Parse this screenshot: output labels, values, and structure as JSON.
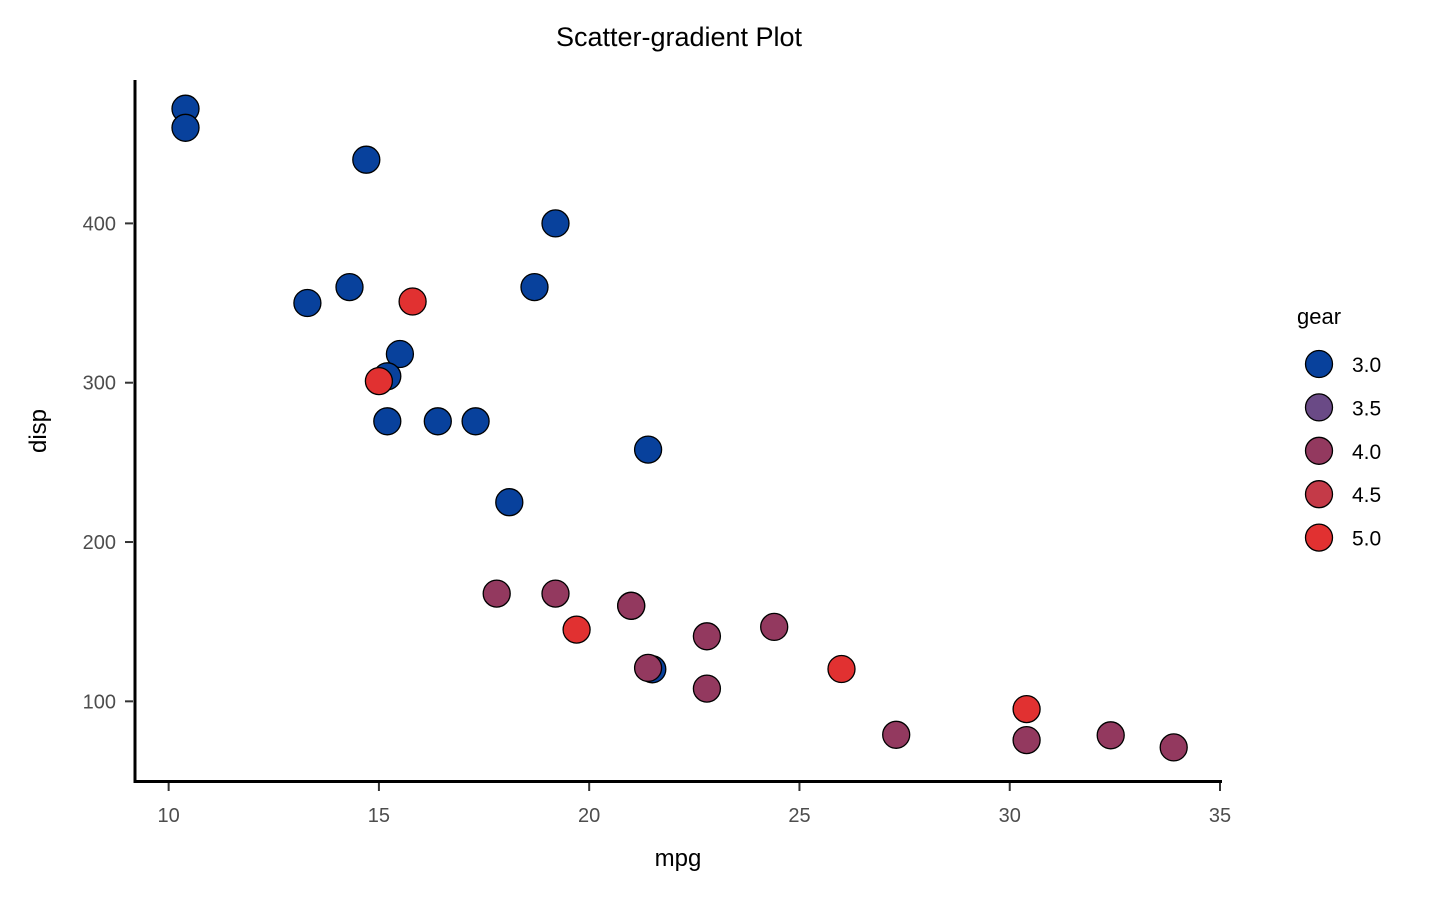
{
  "chart_data": {
    "type": "scatter",
    "title": "Scatter-gradient Plot",
    "xlabel": "mpg",
    "ylabel": "disp",
    "xlim": [
      9.2,
      35.0
    ],
    "ylim": [
      50,
      490
    ],
    "x_ticks": [
      10,
      15,
      20,
      25,
      30,
      35
    ],
    "y_ticks": [
      100,
      200,
      300,
      400
    ],
    "grid": false,
    "legend": {
      "title": "gear",
      "placement": "right",
      "entries": [
        {
          "label": "3.0",
          "value": 3.0,
          "color": "#08419c"
        },
        {
          "label": "3.5",
          "value": 3.5,
          "color": "#6a4a86"
        },
        {
          "label": "4.0",
          "value": 4.0,
          "color": "#93395f"
        },
        {
          "label": "4.5",
          "value": 4.5,
          "color": "#c43a48"
        },
        {
          "label": "5.0",
          "value": 5.0,
          "color": "#e13131"
        }
      ]
    },
    "color_scale": {
      "low": "#08419c",
      "high": "#e13131",
      "domain": [
        3,
        5
      ]
    },
    "points": [
      {
        "x": 21.0,
        "y": 160,
        "gear": 4
      },
      {
        "x": 21.0,
        "y": 160,
        "gear": 4
      },
      {
        "x": 22.8,
        "y": 108,
        "gear": 4
      },
      {
        "x": 21.4,
        "y": 258,
        "gear": 3
      },
      {
        "x": 18.7,
        "y": 360,
        "gear": 3
      },
      {
        "x": 18.1,
        "y": 225,
        "gear": 3
      },
      {
        "x": 14.3,
        "y": 360,
        "gear": 3
      },
      {
        "x": 24.4,
        "y": 146.7,
        "gear": 4
      },
      {
        "x": 22.8,
        "y": 140.8,
        "gear": 4
      },
      {
        "x": 19.2,
        "y": 167.6,
        "gear": 4
      },
      {
        "x": 17.8,
        "y": 167.6,
        "gear": 4
      },
      {
        "x": 16.4,
        "y": 275.8,
        "gear": 3
      },
      {
        "x": 17.3,
        "y": 275.8,
        "gear": 3
      },
      {
        "x": 15.2,
        "y": 275.8,
        "gear": 3
      },
      {
        "x": 10.4,
        "y": 472,
        "gear": 3
      },
      {
        "x": 10.4,
        "y": 460,
        "gear": 3
      },
      {
        "x": 14.7,
        "y": 440,
        "gear": 3
      },
      {
        "x": 32.4,
        "y": 78.7,
        "gear": 4
      },
      {
        "x": 30.4,
        "y": 75.7,
        "gear": 4
      },
      {
        "x": 33.9,
        "y": 71.1,
        "gear": 4
      },
      {
        "x": 21.5,
        "y": 120.1,
        "gear": 3
      },
      {
        "x": 15.5,
        "y": 318,
        "gear": 3
      },
      {
        "x": 15.2,
        "y": 304,
        "gear": 3
      },
      {
        "x": 13.3,
        "y": 350,
        "gear": 3
      },
      {
        "x": 19.2,
        "y": 400,
        "gear": 3
      },
      {
        "x": 27.3,
        "y": 79,
        "gear": 4
      },
      {
        "x": 26.0,
        "y": 120.3,
        "gear": 5
      },
      {
        "x": 30.4,
        "y": 95.1,
        "gear": 5
      },
      {
        "x": 15.8,
        "y": 351,
        "gear": 5
      },
      {
        "x": 19.7,
        "y": 145,
        "gear": 5
      },
      {
        "x": 15.0,
        "y": 301,
        "gear": 5
      },
      {
        "x": 21.4,
        "y": 121,
        "gear": 4
      }
    ]
  }
}
